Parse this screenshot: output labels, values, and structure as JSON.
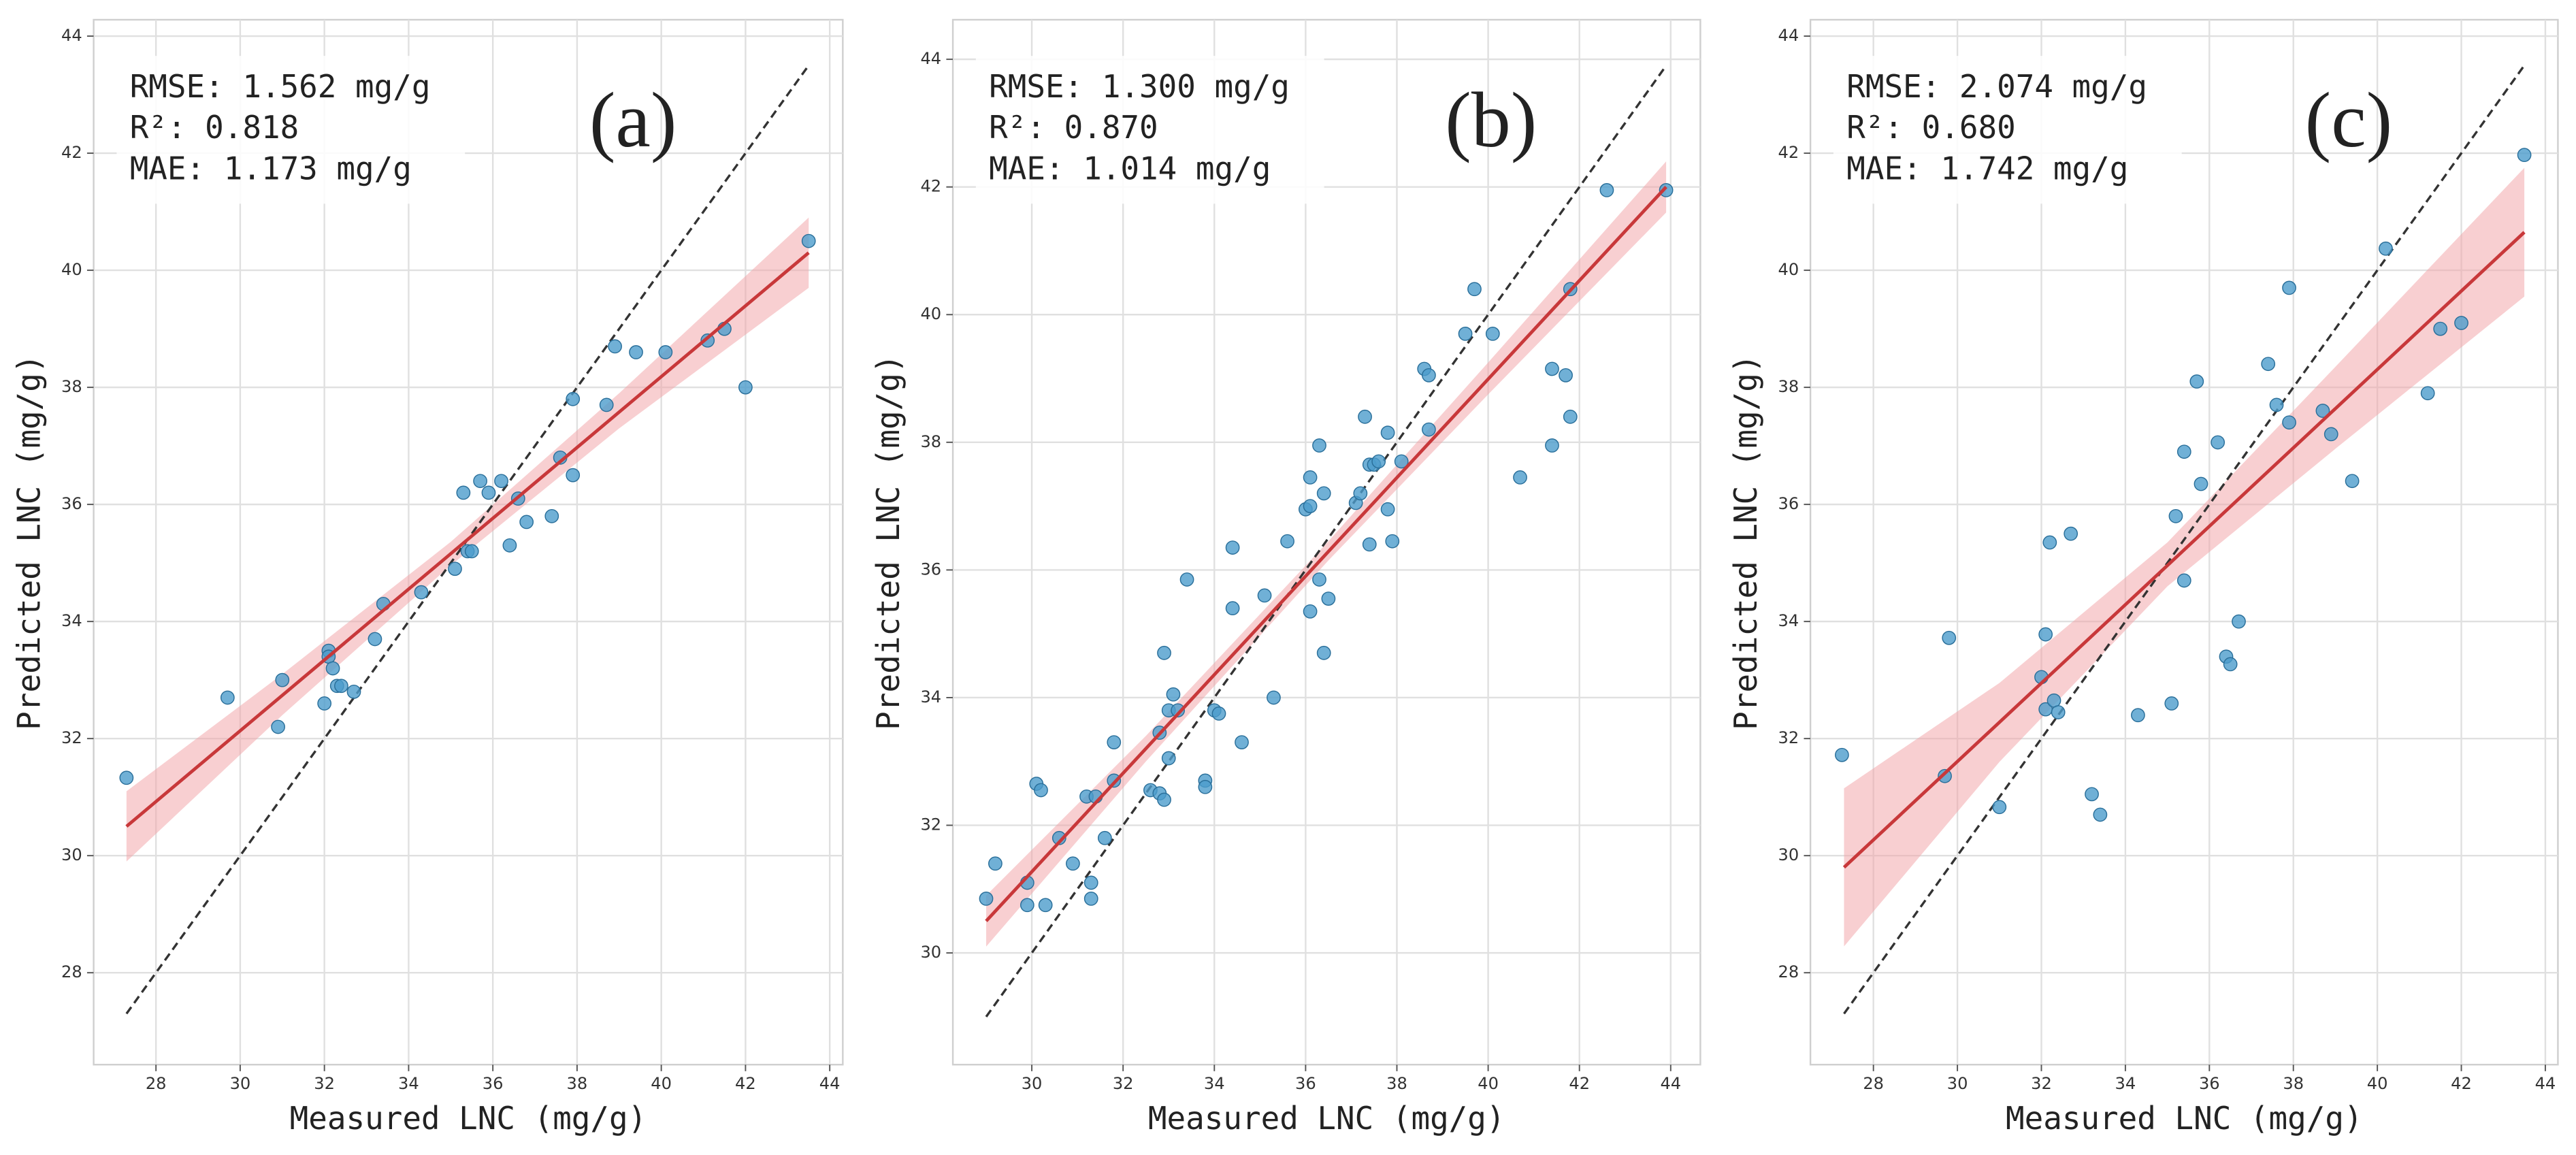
{
  "chart_data": [
    {
      "type": "scatter",
      "title": "(a)",
      "x_label": "Measured LNC (mg/g)",
      "y_label": "Predicted LNC (mg/g)",
      "annotations": [
        "RMSE: 1.562 mg/g",
        "R²: 0.818",
        "MAE: 1.173 mg/g"
      ],
      "color": "#4c9ccc",
      "x": [
        27.3,
        29.7,
        31.0,
        30.9,
        32.1,
        32.1,
        32.2,
        32.0,
        32.3,
        32.4,
        32.7,
        33.2,
        33.4,
        34.3,
        35.1,
        35.4,
        35.5,
        35.3,
        35.7,
        35.9,
        36.2,
        36.6,
        36.4,
        36.8,
        37.4,
        37.6,
        37.9,
        37.9,
        38.7,
        38.9,
        39.4,
        40.1,
        41.1,
        41.5,
        42.0,
        43.5
      ],
      "values": [
        31.33,
        32.7,
        33.0,
        32.2,
        33.5,
        33.4,
        33.2,
        32.6,
        32.9,
        32.9,
        32.8,
        33.7,
        34.3,
        34.5,
        34.9,
        35.2,
        35.2,
        36.2,
        36.4,
        36.2,
        36.4,
        36.1,
        35.3,
        35.7,
        35.8,
        36.8,
        36.5,
        37.8,
        37.7,
        38.7,
        38.6,
        38.6,
        38.8,
        39.0,
        38.0,
        40.5
      ],
      "fit": {
        "color": "#c8383a",
        "x": [
          27.3,
          43.5
        ],
        "values": [
          30.5,
          40.3
        ]
      },
      "band": {
        "color": "#f2a0a4",
        "x": [
          27.3,
          31,
          35,
          39,
          43.5
        ],
        "lower": [
          29.9,
          32.4,
          34.96,
          37.3,
          39.7
        ],
        "upper": [
          31.1,
          33.1,
          35.36,
          37.9,
          40.9
        ]
      },
      "identity": {
        "color": "#333333",
        "x": [
          27.3,
          43.5
        ],
        "values": [
          27.3,
          43.5
        ]
      },
      "xlim": [
        26.52,
        44.31
      ],
      "ylim": [
        26.43,
        44.28
      ],
      "xticks": [
        28,
        30,
        32,
        34,
        36,
        38,
        40,
        42,
        44
      ],
      "yticks": [
        28,
        30,
        32,
        34,
        36,
        38,
        40,
        42,
        44
      ],
      "grid": true
    },
    {
      "type": "scatter",
      "title": "(b)",
      "x_label": "Measured LNC (mg/g)",
      "y_label": "Predicted LNC (mg/g)",
      "annotations": [
        "RMSE: 1.300 mg/g",
        "R²: 0.870",
        "MAE: 1.014 mg/g"
      ],
      "color": "#4c9ccc",
      "x": [
        29.0,
        29.2,
        29.9,
        29.9,
        30.3,
        30.1,
        30.2,
        30.6,
        30.9,
        31.2,
        31.4,
        31.3,
        31.3,
        31.6,
        31.8,
        31.8,
        32.6,
        32.8,
        32.9,
        32.8,
        32.9,
        33.0,
        33.0,
        33.1,
        33.2,
        33.4,
        33.8,
        33.8,
        34.0,
        34.1,
        34.4,
        34.4,
        34.6,
        35.1,
        35.3,
        35.6,
        36.0,
        36.1,
        36.1,
        36.1,
        36.3,
        36.3,
        36.4,
        36.4,
        36.5,
        37.1,
        37.2,
        37.3,
        37.4,
        37.4,
        37.5,
        37.6,
        37.8,
        37.8,
        37.9,
        38.1,
        38.6,
        38.7,
        38.7,
        39.5,
        39.7,
        40.1,
        40.7,
        41.4,
        41.4,
        41.7,
        41.8,
        41.8,
        42.6,
        43.9
      ],
      "values": [
        30.85,
        31.4,
        31.1,
        30.75,
        30.75,
        32.65,
        32.55,
        31.8,
        31.4,
        32.45,
        32.45,
        31.1,
        30.85,
        31.8,
        32.7,
        33.3,
        32.55,
        32.5,
        32.4,
        33.45,
        34.7,
        33.8,
        33.05,
        34.05,
        33.8,
        35.85,
        32.7,
        32.6,
        33.8,
        33.75,
        35.4,
        36.35,
        33.3,
        35.6,
        34.0,
        36.45,
        36.95,
        37.45,
        37.0,
        35.35,
        37.95,
        35.85,
        37.2,
        34.7,
        35.55,
        37.05,
        37.2,
        38.4,
        37.65,
        36.4,
        37.65,
        37.7,
        38.15,
        36.95,
        36.45,
        37.7,
        39.15,
        39.05,
        38.2,
        39.7,
        40.4,
        39.7,
        37.45,
        39.15,
        37.95,
        39.05,
        40.4,
        38.4,
        41.95,
        41.95
      ],
      "fit": {
        "color": "#c8383a",
        "x": [
          29.0,
          43.9
        ],
        "values": [
          30.5,
          42.0
        ]
      },
      "band": {
        "color": "#f2a0a4",
        "x": [
          29,
          32.5,
          36.5,
          40,
          43.9
        ],
        "lower": [
          30.1,
          33.0,
          36.15,
          38.75,
          41.6
        ],
        "upper": [
          30.9,
          33.4,
          36.45,
          39.25,
          42.4
        ]
      },
      "identity": {
        "color": "#333333",
        "x": [
          29.0,
          43.9
        ],
        "values": [
          29.0,
          43.9
        ]
      },
      "xlim": [
        28.27,
        44.65
      ],
      "ylim": [
        28.25,
        44.62
      ],
      "xticks": [
        30,
        32,
        34,
        36,
        38,
        40,
        42,
        44
      ],
      "yticks": [
        30,
        32,
        34,
        36,
        38,
        40,
        42,
        44
      ],
      "grid": true
    },
    {
      "type": "scatter",
      "title": "(c)",
      "x_label": "Measured LNC (mg/g)",
      "y_label": "Predicted LNC (mg/g)",
      "annotations": [
        "RMSE: 2.074 mg/g",
        "R²: 0.680",
        "MAE: 1.742 mg/g"
      ],
      "color": "#4c9ccc",
      "x": [
        27.25,
        29.7,
        29.8,
        31.0,
        32.1,
        32.2,
        32.0,
        32.1,
        32.3,
        32.4,
        32.7,
        33.2,
        33.4,
        34.3,
        35.1,
        35.2,
        35.4,
        35.4,
        35.7,
        35.8,
        36.2,
        36.4,
        36.5,
        36.7,
        37.4,
        37.6,
        37.9,
        37.9,
        38.7,
        38.9,
        39.4,
        40.2,
        41.2,
        41.5,
        42.0,
        43.5
      ],
      "values": [
        31.72,
        31.36,
        33.72,
        30.83,
        33.78,
        35.35,
        33.05,
        32.5,
        32.65,
        32.45,
        35.5,
        31.05,
        30.7,
        32.4,
        32.6,
        35.8,
        36.9,
        34.7,
        38.1,
        36.35,
        37.06,
        33.4,
        33.27,
        34.0,
        38.4,
        37.7,
        39.7,
        37.4,
        37.6,
        37.2,
        36.4,
        40.37,
        37.9,
        39.0,
        39.1,
        41.97
      ],
      "fit": {
        "color": "#c8383a",
        "x": [
          27.3,
          43.5
        ],
        "values": [
          29.8,
          40.65
        ]
      },
      "band": {
        "color": "#f2a0a4",
        "x": [
          27.3,
          31,
          35,
          39,
          43.5
        ],
        "lower": [
          28.45,
          31.6,
          34.6,
          36.95,
          39.55
        ],
        "upper": [
          31.15,
          32.95,
          35.35,
          38.35,
          41.75
        ]
      },
      "identity": {
        "color": "#333333",
        "x": [
          27.3,
          43.5
        ],
        "values": [
          27.3,
          43.5
        ]
      },
      "xlim": [
        26.5,
        44.3
      ],
      "ylim": [
        26.43,
        44.28
      ],
      "xticks": [
        28,
        30,
        32,
        34,
        36,
        38,
        40,
        42,
        44
      ],
      "yticks": [
        28,
        30,
        32,
        34,
        36,
        38,
        40,
        42,
        44
      ],
      "grid": true
    }
  ]
}
